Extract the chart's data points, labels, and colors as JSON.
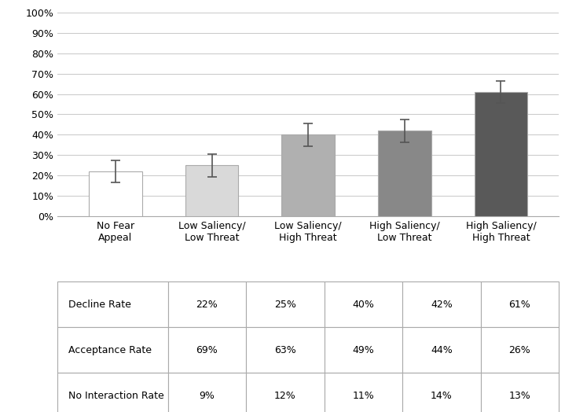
{
  "categories": [
    "No Fear\nAppeal",
    "Low Saliency/\nLow Threat",
    "Low Saliency/\nHigh Threat",
    "High Saliency/\nLow Threat",
    "High Saliency/\nHigh Threat"
  ],
  "values": [
    0.22,
    0.25,
    0.4,
    0.42,
    0.61
  ],
  "errors": [
    0.055,
    0.055,
    0.055,
    0.055,
    0.055
  ],
  "bar_colors": [
    "#ffffff",
    "#d9d9d9",
    "#b0b0b0",
    "#888888",
    "#595959"
  ],
  "bar_edge_color": "#aaaaaa",
  "ylim": [
    0,
    1.0
  ],
  "yticks": [
    0.0,
    0.1,
    0.2,
    0.3,
    0.4,
    0.5,
    0.6,
    0.7,
    0.8,
    0.9,
    1.0
  ],
  "ytick_labels": [
    "0%",
    "10%",
    "20%",
    "30%",
    "40%",
    "50%",
    "60%",
    "70%",
    "80%",
    "90%",
    "100%"
  ],
  "grid_color": "#cccccc",
  "background_color": "#ffffff",
  "table_row_labels": [
    "Decline Rate",
    "Acceptance Rate",
    "No Interaction Rate"
  ],
  "table_data": [
    [
      "22%",
      "25%",
      "40%",
      "42%",
      "61%"
    ],
    [
      "69%",
      "63%",
      "49%",
      "44%",
      "26%"
    ],
    [
      "9%",
      "12%",
      "11%",
      "14%",
      "13%"
    ]
  ],
  "table_font_size": 9,
  "axis_font_size": 9,
  "error_bar_color": "#555555",
  "error_bar_capsize": 4,
  "error_bar_linewidth": 1.2
}
